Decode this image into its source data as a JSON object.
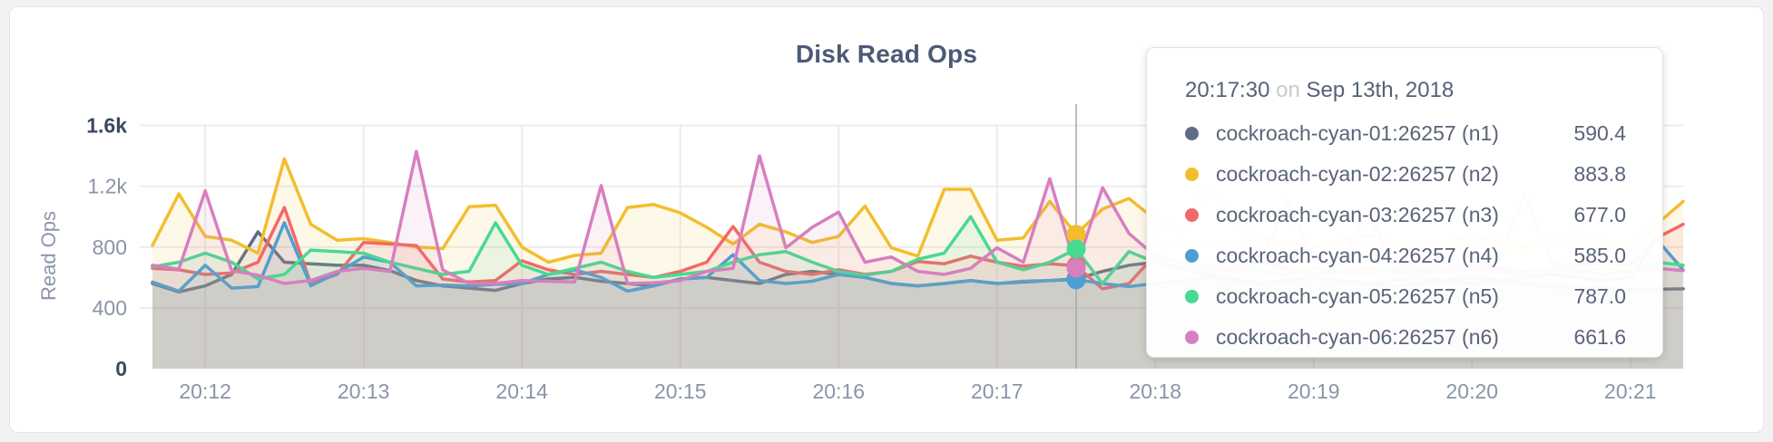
{
  "chart_data": {
    "type": "line",
    "title": "Disk Read Ops",
    "ylabel": "Read Ops",
    "grid": true,
    "legend_position": "none",
    "ylim": [
      0,
      1770
    ],
    "x_start": "20:11:40",
    "x_end": "20:21:20",
    "x_step_seconds": 10,
    "x_ticks": [
      "20:12",
      "20:13",
      "20:14",
      "20:15",
      "20:16",
      "20:17",
      "20:18",
      "20:19",
      "20:20",
      "20:21"
    ],
    "y_ticks": [
      {
        "value": 0,
        "label": "0",
        "strong": true
      },
      {
        "value": 400,
        "label": "400",
        "strong": false
      },
      {
        "value": 800,
        "label": "800",
        "strong": false
      },
      {
        "value": 1200,
        "label": "1.2k",
        "strong": false
      },
      {
        "value": 1600,
        "label": "1.6k",
        "strong": true
      }
    ],
    "series": [
      {
        "name": "cockroach-cyan-01:26257 (n1)",
        "color": "#5F6C87",
        "values": [
          560,
          505,
          545,
          620,
          900,
          700,
          690,
          680,
          680,
          645,
          580,
          545,
          530,
          515,
          560,
          590,
          600,
          575,
          560,
          545,
          590,
          600,
          580,
          560,
          620,
          640,
          620,
          600,
          560,
          545,
          560,
          580,
          560,
          570,
          580,
          590.4,
          640,
          680,
          700,
          660,
          620,
          590,
          560,
          580,
          600,
          580,
          560,
          540,
          560,
          580,
          600,
          580,
          560,
          540,
          530,
          525,
          520,
          522,
          525
        ]
      },
      {
        "name": "cockroach-cyan-02:26257 (n2)",
        "color": "#F2BE2C",
        "values": [
          810,
          1150,
          870,
          845,
          760,
          1380,
          950,
          845,
          855,
          830,
          800,
          790,
          1065,
          1075,
          800,
          700,
          745,
          760,
          1060,
          1080,
          1025,
          930,
          820,
          950,
          900,
          830,
          870,
          1070,
          795,
          740,
          1180,
          1180,
          845,
          860,
          1100,
          883.8,
          1050,
          1120,
          980,
          900,
          1200,
          950,
          860,
          820,
          800,
          840,
          880,
          820,
          790,
          830,
          870,
          840,
          800,
          840,
          900,
          840,
          780,
          950,
          1100
        ]
      },
      {
        "name": "cockroach-cyan-03:26257 (n3)",
        "color": "#F16969",
        "values": [
          660,
          650,
          620,
          630,
          700,
          1060,
          560,
          620,
          830,
          820,
          810,
          590,
          570,
          580,
          710,
          650,
          620,
          640,
          620,
          600,
          640,
          700,
          935,
          700,
          640,
          620,
          650,
          620,
          640,
          705,
          690,
          740,
          700,
          674,
          690,
          677,
          525,
          560,
          750,
          700,
          660,
          640,
          700,
          660,
          620,
          640,
          660,
          640,
          620,
          650,
          680,
          660,
          640,
          660,
          680,
          700,
          680,
          860,
          950
        ]
      },
      {
        "name": "cockroach-cyan-04:26257 (n4)",
        "color": "#4E9FD1",
        "values": [
          570,
          510,
          680,
          530,
          540,
          960,
          545,
          630,
          735,
          700,
          545,
          550,
          545,
          555,
          560,
          620,
          650,
          600,
          510,
          545,
          590,
          600,
          750,
          580,
          560,
          575,
          620,
          600,
          560,
          545,
          560,
          580,
          560,
          575,
          580,
          585,
          560,
          540,
          560,
          580,
          600,
          580,
          560,
          580,
          600,
          580,
          560,
          580,
          600,
          580,
          560,
          580,
          600,
          620,
          600,
          580,
          600,
          850,
          650
        ]
      },
      {
        "name": "cockroach-cyan-05:26257 (n5)",
        "color": "#49D990",
        "values": [
          670,
          700,
          760,
          700,
          590,
          620,
          780,
          770,
          760,
          700,
          660,
          620,
          640,
          960,
          680,
          620,
          660,
          700,
          640,
          600,
          620,
          640,
          700,
          750,
          770,
          700,
          640,
          615,
          640,
          720,
          760,
          1000,
          700,
          650,
          700,
          787,
          560,
          770,
          700,
          660,
          640,
          680,
          640,
          620,
          660,
          640,
          620,
          660,
          640,
          700,
          660,
          700,
          1150,
          700,
          640,
          660,
          640,
          700,
          680
        ]
      },
      {
        "name": "cockroach-cyan-06:26257 (n6)",
        "color": "#D77FBF",
        "values": [
          680,
          655,
          1170,
          645,
          615,
          560,
          580,
          640,
          660,
          640,
          1430,
          650,
          560,
          560,
          580,
          575,
          570,
          1205,
          560,
          565,
          580,
          640,
          660,
          1400,
          795,
          930,
          1030,
          700,
          735,
          640,
          620,
          660,
          795,
          700,
          1250,
          661.6,
          1190,
          890,
          740,
          700,
          680,
          660,
          700,
          1100,
          720,
          680,
          1050,
          700,
          660,
          640,
          660,
          640,
          620,
          660,
          640,
          620,
          640,
          660,
          645
        ]
      }
    ],
    "hover": {
      "time": "20:17:30",
      "on_text": "on",
      "date": "Sep 13th, 2018",
      "values": [
        "590.4",
        "883.8",
        "677.0",
        "585.0",
        "787.0",
        "661.6"
      ]
    }
  },
  "style_colors": {
    "grid": "#ececec",
    "crosshair": "#a8a8a8",
    "title_text": "#4C5A76",
    "axis_text": "#8A94A8",
    "axis_text_strong": "#3E4961",
    "tooltip_text": "#5A6478"
  }
}
